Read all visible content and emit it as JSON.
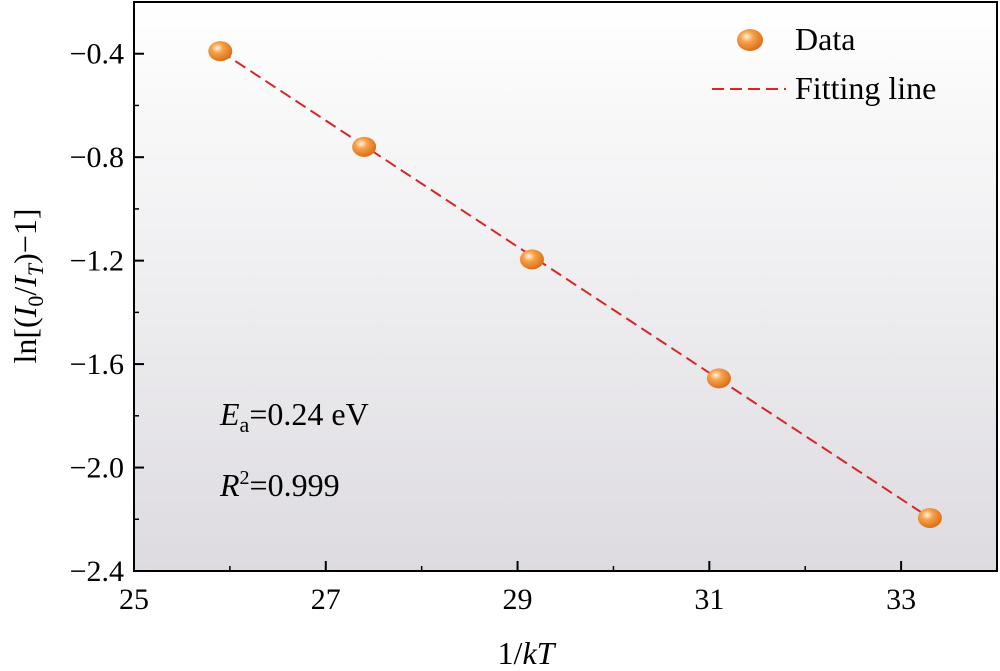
{
  "chart_data": {
    "type": "scatter",
    "title": "",
    "xlabel": {
      "prefix": "1/",
      "italic": "kT"
    },
    "ylabel": {
      "pre": "ln[(",
      "i1": "I",
      "s1": "0",
      "mid": "/",
      "i2": "I",
      "s2": "T",
      "post": ")−1]"
    },
    "xlim": [
      25,
      34
    ],
    "ylim": [
      -2.4,
      -0.2
    ],
    "xticks": [
      25,
      27,
      29,
      31,
      33
    ],
    "xtick_labels": [
      "25",
      "27",
      "29",
      "31",
      "33"
    ],
    "yticks": [
      -0.4,
      -0.8,
      -1.2,
      -1.6,
      -2.0,
      -2.4
    ],
    "ytick_labels": [
      "−0.4",
      "−0.8",
      "−1.2",
      "−1.6",
      "−2.0",
      "−2.4"
    ],
    "grid": false,
    "legend_position": "top-right",
    "series": [
      {
        "name": "Data",
        "kind": "scatter",
        "color": "#ee8a2b",
        "x": [
          25.9,
          27.4,
          29.15,
          31.1,
          33.3
        ],
        "y": [
          -0.39,
          -0.76,
          -1.195,
          -1.655,
          -2.195
        ]
      },
      {
        "name": "Fitting line",
        "kind": "line",
        "style": "dashed",
        "color": "#d62728",
        "x": [
          25.9,
          33.3
        ],
        "y": [
          -0.39,
          -2.195
        ]
      }
    ],
    "annotations": {
      "ea": {
        "italic": "E",
        "sub": "a",
        "rest": "=0.24 eV"
      },
      "r2": {
        "italic": "R",
        "sup": "2",
        "rest": "=0.999"
      }
    },
    "background_gradient": [
      "#ffffff",
      "#dddbe0"
    ]
  }
}
